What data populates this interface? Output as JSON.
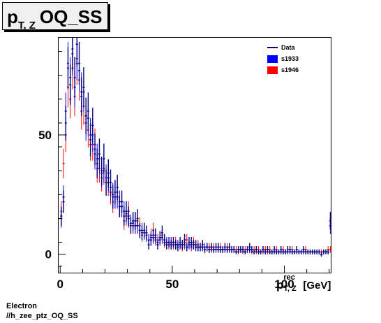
{
  "header": {
    "title_main": "p",
    "title_sub": "T, Z",
    "title_rest": "OQ_SS"
  },
  "footer": {
    "line1": "Electron",
    "line2": "//h_zee_ptz_OQ_SS"
  },
  "legend": {
    "items": [
      {
        "label": "Data",
        "kind": "line",
        "color": "#000080"
      },
      {
        "label": "s1933",
        "kind": "box",
        "color": "#0000ff"
      },
      {
        "label": "s1946",
        "kind": "box",
        "color": "#ff0000"
      }
    ]
  },
  "chart_data": {
    "type": "scatter",
    "title": "p_T,Z OQ_SS",
    "xlabel": {
      "symbol": "p",
      "sup": "rec",
      "sub": "T, Z",
      "unit": "[GeV]"
    },
    "ylabel": "",
    "xlim": [
      -1,
      121
    ],
    "ylim": [
      -8,
      91
    ],
    "x_ticks": [
      0,
      50,
      100
    ],
    "y_ticks": [
      0,
      50
    ],
    "grid": false,
    "legend_position": "top-right",
    "colors": {
      "data": "#000080",
      "s1933": "#0000ff",
      "s1946": "#ff0000"
    },
    "x": [
      0.5,
      1.5,
      2.5,
      3.5,
      4.5,
      5.5,
      6.5,
      7.5,
      8.5,
      9.5,
      10.5,
      11.5,
      12.5,
      13.5,
      14.5,
      15.5,
      16.5,
      17.5,
      18.5,
      19.5,
      20.5,
      21.5,
      22.5,
      23.5,
      24.5,
      25.5,
      26.5,
      27.5,
      28.5,
      29.5,
      30.5,
      31.5,
      32.5,
      33.5,
      34.5,
      35.5,
      36.5,
      37.5,
      38.5,
      39.5,
      40.5,
      41.5,
      42.5,
      43.5,
      44.5,
      45.5,
      46.5,
      47.5,
      48.5,
      49.5,
      50.5,
      51.5,
      52.5,
      53.5,
      54.5,
      55.5,
      56.5,
      57.5,
      58.5,
      59.5,
      60.5,
      61.5,
      62.5,
      63.5,
      64.5,
      65.5,
      66.5,
      67.5,
      68.5,
      69.5,
      70.5,
      71.5,
      72.5,
      73.5,
      74.5,
      75.5,
      76.5,
      77.5,
      78.5,
      79.5,
      80.5,
      81.5,
      82.5,
      83.5,
      84.5,
      85.5,
      86.5,
      87.5,
      88.5,
      89.5,
      90.5,
      91.5,
      92.5,
      93.5,
      94.5,
      95.5,
      96.5,
      97.5,
      98.5,
      99.5,
      100.5,
      101.5,
      102.5,
      103.5,
      104.5,
      105.5,
      106.5,
      107.5,
      108.5,
      109.5,
      110.5,
      111.5,
      112.5,
      113.5,
      114.5,
      115.5,
      116.5,
      117.5,
      118.5,
      119.5,
      120.5
    ],
    "series": [
      {
        "name": "Data",
        "values": [
          16,
          22,
          55,
          78,
          71,
          86,
          74,
          88,
          80,
          66,
          70,
          58,
          60,
          48,
          54,
          44,
          38,
          42,
          35,
          40,
          30,
          34,
          30,
          24,
          26,
          28,
          20,
          22,
          16,
          18,
          16,
          12,
          14,
          14,
          15,
          10,
          9,
          10,
          9,
          4,
          6,
          8,
          8,
          4,
          7,
          9,
          6,
          4,
          5,
          4,
          5,
          4,
          3,
          5,
          4,
          6,
          3,
          5,
          5,
          4,
          4,
          3,
          3,
          4,
          2,
          3,
          2,
          3,
          2,
          3,
          3,
          2,
          2,
          3,
          2,
          3,
          2,
          2,
          1,
          2,
          2,
          2,
          1,
          2,
          3,
          2,
          1,
          2,
          1,
          1,
          2,
          1,
          2,
          1,
          1,
          2,
          1,
          1,
          2,
          1,
          1,
          2,
          2,
          1,
          1,
          2,
          1,
          1,
          2,
          1,
          1,
          1,
          1,
          1,
          1,
          1,
          0,
          1,
          1,
          1,
          14
        ]
      },
      {
        "name": "s1933",
        "values": [
          15,
          24,
          60,
          80,
          74,
          84,
          70,
          82,
          77,
          68,
          68,
          55,
          57,
          50,
          50,
          42,
          40,
          40,
          34,
          36,
          32,
          32,
          28,
          25,
          24,
          24,
          22,
          20,
          18,
          17,
          15,
          13,
          13,
          12,
          12,
          10,
          10,
          9,
          8,
          6,
          7,
          7,
          7,
          5,
          6,
          7,
          6,
          5,
          5,
          5,
          5,
          4,
          4,
          4,
          4,
          5,
          3,
          4,
          4,
          4,
          3,
          3,
          3,
          3,
          3,
          3,
          2,
          3,
          2,
          2,
          2,
          2,
          2,
          2,
          2,
          2,
          2,
          2,
          1,
          2,
          2,
          2,
          1,
          2,
          2,
          2,
          1,
          2,
          1,
          1,
          2,
          1,
          2,
          1,
          1,
          1,
          1,
          1,
          1,
          1,
          1,
          1,
          1,
          1,
          1,
          1,
          1,
          1,
          1,
          1,
          1,
          1,
          1,
          1,
          1,
          1,
          0,
          1,
          1,
          1,
          12
        ]
      },
      {
        "name": "s1946",
        "values": [
          18,
          38,
          50,
          70,
          65,
          78,
          66,
          80,
          73,
          60,
          62,
          58,
          52,
          46,
          46,
          46,
          36,
          36,
          32,
          35,
          30,
          30,
          26,
          22,
          24,
          26,
          20,
          20,
          14,
          16,
          18,
          12,
          12,
          12,
          14,
          12,
          8,
          10,
          9,
          6,
          8,
          10,
          6,
          6,
          7,
          8,
          5,
          5,
          4,
          5,
          4,
          5,
          4,
          4,
          3,
          4,
          6,
          4,
          3,
          5,
          3,
          4,
          3,
          3,
          2,
          3,
          3,
          2,
          3,
          2,
          2,
          3,
          2,
          2,
          3,
          2,
          2,
          2,
          2,
          1,
          2,
          1,
          2,
          2,
          2,
          1,
          2,
          1,
          2,
          1,
          1,
          2,
          1,
          2,
          1,
          1,
          2,
          1,
          1,
          2,
          1,
          1,
          1,
          2,
          1,
          1,
          1,
          1,
          1,
          2,
          1,
          1,
          1,
          1,
          1,
          1,
          1,
          1,
          1,
          2,
          2
        ]
      }
    ]
  }
}
